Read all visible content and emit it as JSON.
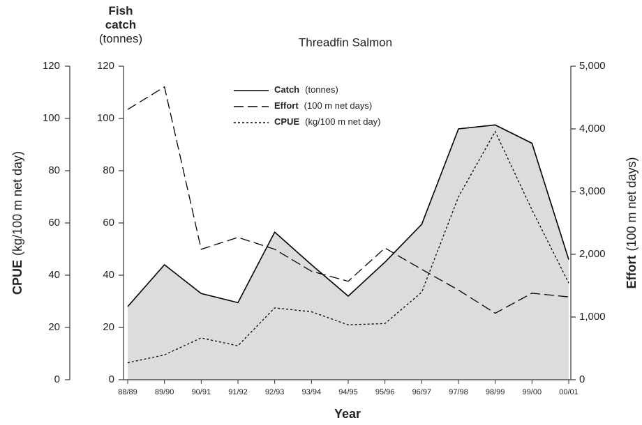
{
  "chart_data": {
    "type": "line",
    "title": "Threadfin Salmon",
    "x_label": "Year",
    "y_label": "CPUE",
    "y_unit": "(kg/100 m net day)",
    "y3_label": "Fish catch",
    "y3_unit": "(tonnes)",
    "y2_label": "Effort",
    "y2_unit": "(100 m net days)",
    "categories": [
      "88/89",
      "89/90",
      "90/91",
      "91/92",
      "92/93",
      "93/94",
      "94/95",
      "95/96",
      "96/97",
      "97/98",
      "98/99",
      "99/00",
      "00/01"
    ],
    "ylim": [
      0,
      120
    ],
    "yticks": [
      0,
      20,
      40,
      60,
      80,
      100,
      120
    ],
    "y3lim": [
      0,
      120
    ],
    "y3ticks": [
      0,
      20,
      40,
      60,
      80,
      100,
      120
    ],
    "y2lim": [
      0,
      5000
    ],
    "y2ticks": [
      0,
      {
        "value": 1000,
        "label": "1,000"
      },
      {
        "value": 2000,
        "label": "2,000"
      },
      {
        "value": 3000,
        "label": "3,000"
      },
      {
        "value": 4000,
        "label": "4,000"
      },
      {
        "value": 5000,
        "label": "5,000"
      }
    ],
    "series": [
      {
        "name": "Catch",
        "legend_note": "(tonnes)",
        "color": "#000000",
        "fill": "#dcdcdc",
        "dash": "solid",
        "axis": "y3",
        "values": [
          28,
          44,
          33,
          29.5,
          56.5,
          44,
          32,
          45,
          59.5,
          96,
          97.5,
          90.5,
          46
        ]
      },
      {
        "name": "Effort",
        "legend_note": "(100 m net days)",
        "color": "#000000",
        "dash": "dashed",
        "axis": "y2",
        "values": [
          4310,
          4670,
          2080,
          2270,
          2080,
          1730,
          1570,
          2100,
          1760,
          1430,
          1060,
          1380,
          1320
        ]
      },
      {
        "name": "CPUE",
        "legend_note": "(kg/100 m net day)",
        "color": "#000000",
        "dash": "dotted",
        "axis": "y",
        "values": [
          6.5,
          9.5,
          16,
          13,
          27.5,
          26,
          21,
          21.5,
          33.5,
          70,
          95,
          65,
          37
        ]
      }
    ]
  }
}
